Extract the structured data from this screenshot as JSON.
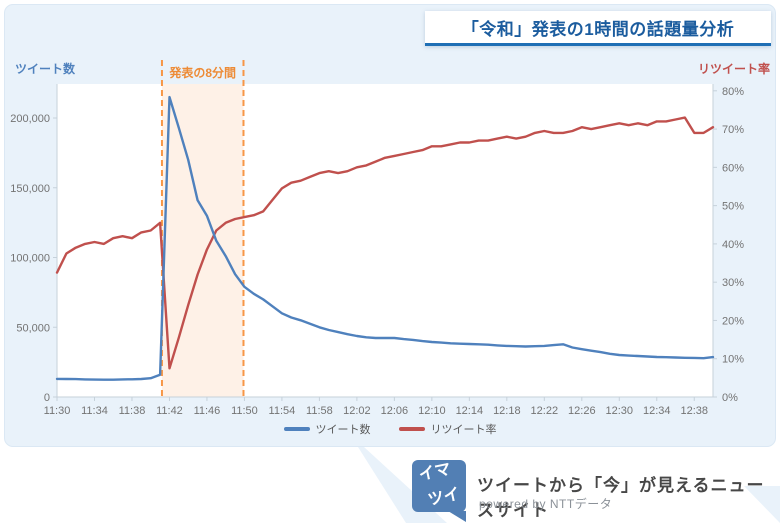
{
  "title": {
    "text": "「令和」発表の1時間の話題量分析"
  },
  "chart_data": {
    "type": "line",
    "title": "「令和」発表の1時間の話題量分析",
    "x_start": "11:30",
    "x_end": "12:40",
    "x_interval_minutes": 1,
    "x_ticks": [
      "11:30",
      "11:34",
      "11:38",
      "11:42",
      "11:46",
      "11:50",
      "11:54",
      "11:58",
      "12:02",
      "12:06",
      "12:10",
      "12:14",
      "12:18",
      "12:22",
      "12:26",
      "12:30",
      "12:34",
      "12:38"
    ],
    "left_axis": {
      "label": "ツイート数",
      "color": "#4f81bd",
      "min": 0,
      "max": 200000,
      "ticks": [
        "0",
        "50,000",
        "100,000",
        "150,000",
        "200,000"
      ],
      "tick_values": [
        0,
        50000,
        100000,
        150000,
        200000
      ]
    },
    "right_axis": {
      "label": "リツイート率",
      "color": "#c0504d",
      "min": 0,
      "max": 80,
      "ticks": [
        "0%",
        "10%",
        "20%",
        "30%",
        "40%",
        "50%",
        "60%",
        "70%",
        "80%"
      ],
      "tick_values": [
        0,
        10,
        20,
        30,
        40,
        50,
        60,
        70,
        80
      ]
    },
    "annotation": {
      "label": "発表の8分間",
      "start_min": 11.2,
      "end_min": 19.9,
      "line_color": "#f79646",
      "text_color": "#ed8b36",
      "band_fill": "rgba(247,150,70,0.13)"
    },
    "grid": false,
    "legend_position": "bottom",
    "series": [
      {
        "name": "ツイート数",
        "axis": "left",
        "color": "#4f81bd",
        "values": [
          13000,
          12900,
          12800,
          12600,
          12500,
          12400,
          12400,
          12600,
          12700,
          12900,
          13500,
          16000,
          215000,
          193000,
          170000,
          141000,
          130000,
          112000,
          101000,
          88000,
          79000,
          74000,
          70000,
          65000,
          60000,
          57000,
          55000,
          52500,
          50000,
          48000,
          46500,
          45000,
          43700,
          42800,
          42300,
          42300,
          42300,
          41500,
          40900,
          40100,
          39400,
          39000,
          38500,
          38200,
          38000,
          37800,
          37500,
          37000,
          36600,
          36400,
          36200,
          36400,
          36600,
          37200,
          37800,
          35500,
          34300,
          33200,
          32200,
          31000,
          30100,
          29700,
          29400,
          29000,
          28700,
          28500,
          28300,
          28100,
          28000,
          27800,
          28600
        ]
      },
      {
        "name": "リツイート率",
        "axis": "right",
        "color": "#c0504d",
        "values": [
          32.5,
          37.5,
          39,
          40,
          40.5,
          40,
          41.5,
          42,
          41.5,
          43,
          43.5,
          45.5,
          7.5,
          15.5,
          24,
          32,
          38.5,
          43.5,
          45.5,
          46.5,
          47,
          47.5,
          48.5,
          51.5,
          54.5,
          56,
          56.5,
          57.5,
          58.5,
          59,
          58.5,
          59,
          60,
          60.5,
          61.5,
          62.5,
          63,
          63.5,
          64,
          64.5,
          65.5,
          65.5,
          66,
          66.5,
          66.5,
          67,
          67,
          67.5,
          68,
          67.5,
          68,
          69,
          69.5,
          69,
          69,
          69.5,
          70.5,
          70,
          70.5,
          71,
          71.5,
          71,
          71.5,
          71,
          72,
          72,
          72.5,
          73,
          69,
          69,
          70.5
        ]
      }
    ]
  },
  "legend": {
    "tweets_label": "ツイート数",
    "retweet_label": "リツイート率"
  },
  "footer": {
    "logo_line1": "イマ",
    "logo_line2": "ツイ",
    "tagline": "ツイートから「今」が見えるニュースサイト",
    "powered_by": "powered by NTTデータ",
    "logo_color": "#527fb4"
  }
}
